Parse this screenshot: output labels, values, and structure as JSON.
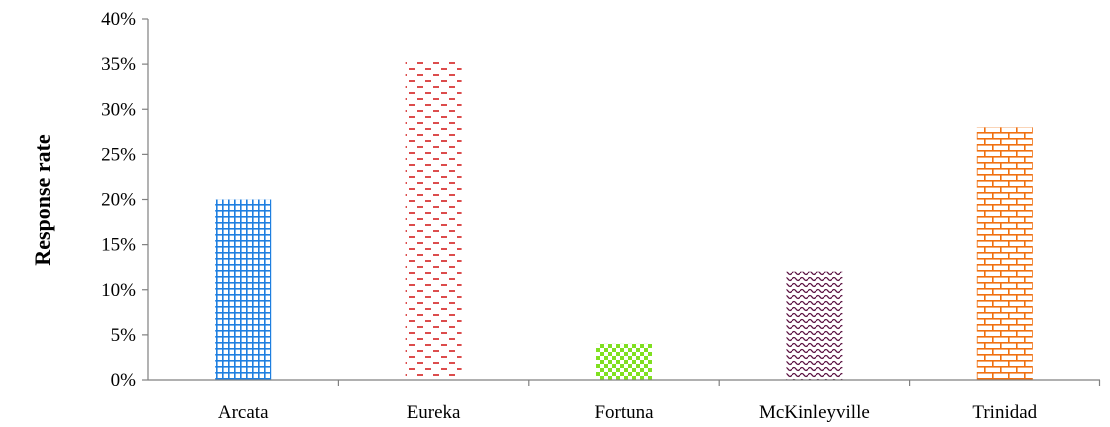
{
  "chart_data": {
    "type": "bar",
    "title": "",
    "xlabel": "",
    "ylabel": "Response rate",
    "categories": [
      "Arcata",
      "Eureka",
      "Fortuna",
      "McKinleyville",
      "Trinidad"
    ],
    "values": [
      20,
      35.5,
      4,
      12,
      28
    ],
    "value_unit": "%",
    "ylim": [
      0,
      40
    ],
    "yticks": [
      "0%",
      "5%",
      "10%",
      "15%",
      "20%",
      "25%",
      "30%",
      "35%",
      "40%"
    ],
    "grid": false,
    "legend": "none",
    "bars": [
      {
        "pattern": "grid",
        "color": "#1f7fe0"
      },
      {
        "pattern": "dashes",
        "color": "#d42020"
      },
      {
        "pattern": "checker",
        "color": "#80e020"
      },
      {
        "pattern": "waves",
        "color": "#5a1040"
      },
      {
        "pattern": "bricks",
        "color": "#f07010"
      }
    ]
  }
}
